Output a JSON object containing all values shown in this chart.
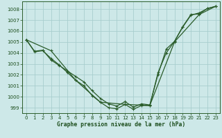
{
  "title": "Graphe pression niveau de la mer (hPa)",
  "bg_color": "#cde8e8",
  "plot_bg_color": "#cde8e8",
  "line_color": "#2a5c2a",
  "grid_color": "#a8cece",
  "text_color": "#1a4c1a",
  "xlim": [
    -0.5,
    23.5
  ],
  "ylim": [
    998.5,
    1008.7
  ],
  "yticks": [
    999,
    1000,
    1001,
    1002,
    1003,
    1004,
    1005,
    1006,
    1007,
    1008
  ],
  "xticks": [
    0,
    1,
    2,
    3,
    4,
    5,
    6,
    7,
    8,
    9,
    10,
    11,
    12,
    13,
    14,
    15,
    16,
    17,
    18,
    19,
    20,
    21,
    22,
    23
  ],
  "series1": {
    "x": [
      0,
      1,
      2,
      3,
      4,
      5,
      6,
      7,
      8,
      9,
      10,
      11,
      12,
      13,
      14,
      15,
      16,
      17,
      18,
      19,
      20,
      21,
      22,
      23
    ],
    "y": [
      1005.2,
      1004.1,
      1004.2,
      1003.5,
      1002.9,
      1002.2,
      1001.5,
      1001.0,
      1000.1,
      999.5,
      999.0,
      998.9,
      999.3,
      998.85,
      999.2,
      999.2,
      1002.2,
      1004.0,
      1005.05,
      1006.4,
      1007.5,
      1007.55,
      1008.05,
      1008.25
    ]
  },
  "series2": {
    "x": [
      0,
      1,
      2,
      3,
      4,
      5,
      6,
      7,
      8,
      9,
      10,
      11,
      12,
      13,
      14,
      15,
      16,
      17,
      18,
      19,
      20,
      21,
      22,
      23
    ],
    "y": [
      1005.2,
      1004.15,
      1004.25,
      1003.35,
      1002.85,
      1002.35,
      1001.85,
      1001.35,
      1000.55,
      999.85,
      999.35,
      999.15,
      999.55,
      999.05,
      999.35,
      999.25,
      1002.05,
      1004.35,
      1005.05,
      1006.35,
      1007.45,
      1007.65,
      1008.05,
      1008.25
    ]
  },
  "series3": {
    "x": [
      0,
      3,
      6,
      9,
      12,
      15,
      18,
      21,
      23
    ],
    "y": [
      1005.2,
      1004.2,
      1001.5,
      999.5,
      999.3,
      999.2,
      1005.0,
      1007.5,
      1008.25
    ]
  }
}
